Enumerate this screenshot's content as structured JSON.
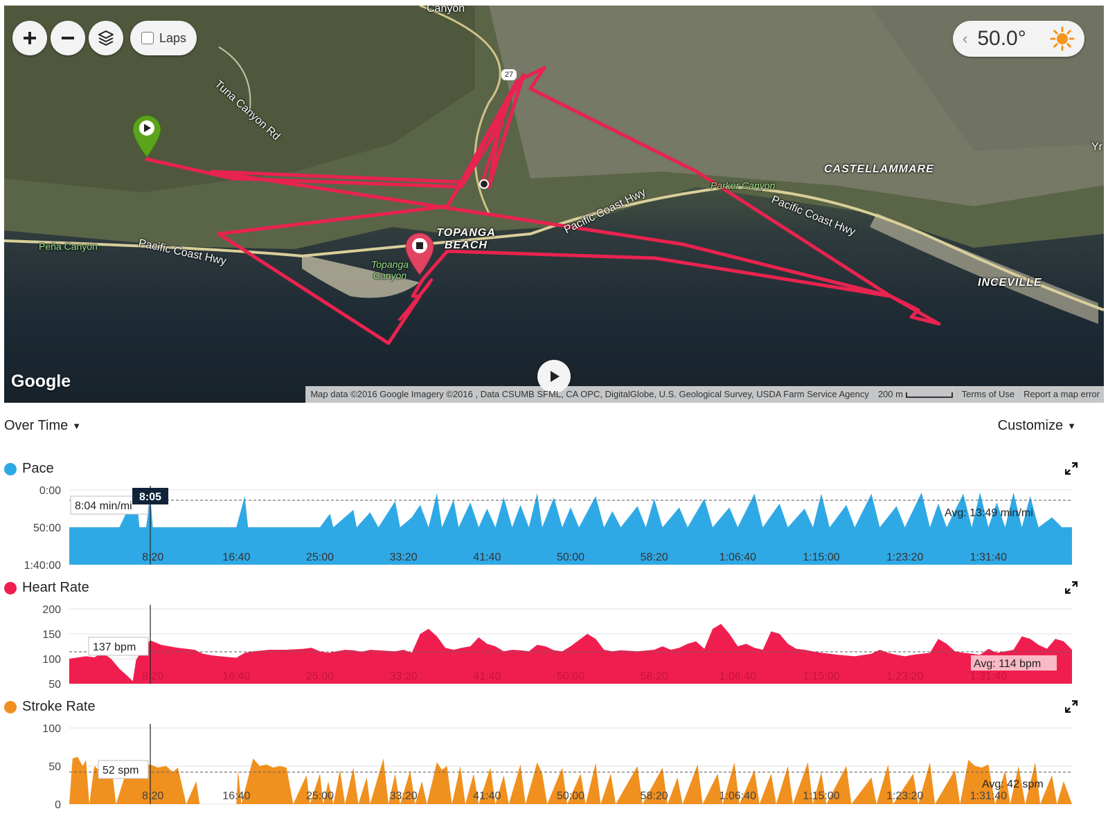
{
  "map": {
    "controls": {
      "zoom_in": "+",
      "zoom_out": "−",
      "laps_label": "Laps"
    },
    "weather": {
      "temperature": "50.0°",
      "icon": "sun-icon"
    },
    "logo": "Google",
    "play_icon": "play-icon",
    "attribution": {
      "data": "Map data ©2016 Google Imagery ©2016 , Data CSUMB SFML, CA OPC, DigitalGlobe, U.S. Geological Survey, USDA Farm Service Agency",
      "scale": "200 m",
      "terms": "Terms of Use",
      "report": "Report a map error"
    },
    "labels": {
      "canyon_top": "Canyon",
      "tuna_canyon_rd": "Tuna Canyon Rd",
      "route_27": "27",
      "pena_canyon": "Peña Canyon",
      "pch_left": "Pacific Coast Hwy",
      "topanga_beach": "TOPANGA BEACH",
      "topanga_canyon": "Topanga Canyon",
      "pch_mid": "Pacific Coast Hwy",
      "parker_canyon": "Parker Canyon",
      "castellammare": "CASTELLAMMARE",
      "pch_right": "Pacific Coast Hwy",
      "inceville": "INCEVILLE",
      "edge_right": "Yr"
    },
    "colors": {
      "track": "#e8234f",
      "start_pin": "#5ba31b",
      "end_pin": "#e04461"
    }
  },
  "controls_bar": {
    "view_mode": "Over Time",
    "customize": "Customize"
  },
  "x_ticks": [
    "8:20",
    "16:40",
    "25:00",
    "33:20",
    "41:40",
    "50:00",
    "58:20",
    "1:06:40",
    "1:15:00",
    "1:23:20",
    "1:31:40"
  ],
  "cursor": {
    "time": "8:05"
  },
  "charts": [
    {
      "key": "pace",
      "title": "Pace",
      "color": "#2fa9e6",
      "y_ticks": [
        "0:00",
        "50:00",
        "1:40:00"
      ],
      "tooltip": "8:04 min/mi",
      "avg_label": "Avg: 13:49 min/mi"
    },
    {
      "key": "heart_rate",
      "title": "Heart Rate",
      "color": "#f01e4f",
      "y_ticks": [
        "200",
        "150",
        "100",
        "50"
      ],
      "tooltip": "137 bpm",
      "avg_label": "Avg: 114 bpm"
    },
    {
      "key": "stroke_rate",
      "title": "Stroke Rate",
      "color": "#f0901e",
      "y_ticks": [
        "100",
        "50",
        "0"
      ],
      "tooltip": "52 spm",
      "avg_label": "Avg: 42 spm"
    }
  ],
  "chart_data": [
    {
      "type": "area",
      "title": "Pace",
      "ylabel": "min/mi",
      "ylim_seconds_per_mile": [
        0,
        6000
      ],
      "y_inverted": true,
      "avg_seconds_per_mile": 829,
      "points": [
        [
          0,
          3000
        ],
        [
          100,
          3000
        ],
        [
          200,
          3000
        ],
        [
          300,
          3000
        ],
        [
          400,
          200
        ],
        [
          420,
          3000
        ],
        [
          460,
          3000
        ],
        [
          485,
          484
        ],
        [
          500,
          3000
        ],
        [
          620,
          3000
        ],
        [
          700,
          3000
        ],
        [
          800,
          3000
        ],
        [
          1000,
          3000
        ],
        [
          1050,
          500
        ],
        [
          1070,
          3000
        ],
        [
          1300,
          3000
        ],
        [
          1500,
          3000
        ],
        [
          1560,
          1900
        ],
        [
          1580,
          3000
        ],
        [
          1700,
          1600
        ],
        [
          1720,
          3000
        ],
        [
          1800,
          1800
        ],
        [
          1850,
          3000
        ],
        [
          1950,
          900
        ],
        [
          1980,
          3000
        ],
        [
          2050,
          2200
        ],
        [
          2100,
          1200
        ],
        [
          2150,
          3000
        ],
        [
          2200,
          250
        ],
        [
          2230,
          3000
        ],
        [
          2300,
          800
        ],
        [
          2330,
          3000
        ],
        [
          2400,
          1000
        ],
        [
          2450,
          3000
        ],
        [
          2500,
          1500
        ],
        [
          2550,
          3000
        ],
        [
          2600,
          600
        ],
        [
          2650,
          3000
        ],
        [
          2700,
          1200
        ],
        [
          2750,
          3000
        ],
        [
          2800,
          250
        ],
        [
          2830,
          3000
        ],
        [
          2900,
          600
        ],
        [
          2950,
          3000
        ],
        [
          3000,
          1400
        ],
        [
          3050,
          3000
        ],
        [
          3150,
          500
        ],
        [
          3200,
          3000
        ],
        [
          3250,
          1700
        ],
        [
          3300,
          3000
        ],
        [
          3400,
          1300
        ],
        [
          3450,
          3000
        ],
        [
          3500,
          700
        ],
        [
          3550,
          3000
        ],
        [
          3650,
          1400
        ],
        [
          3700,
          3000
        ],
        [
          3800,
          700
        ],
        [
          3850,
          3000
        ],
        [
          3950,
          1400
        ],
        [
          4000,
          3000
        ],
        [
          4100,
          300
        ],
        [
          4150,
          3000
        ],
        [
          4250,
          1100
        ],
        [
          4300,
          3000
        ],
        [
          4400,
          1500
        ],
        [
          4450,
          3000
        ],
        [
          4500,
          300
        ],
        [
          4550,
          3000
        ],
        [
          4650,
          1200
        ],
        [
          4700,
          3000
        ],
        [
          4800,
          300
        ],
        [
          4850,
          3000
        ],
        [
          4950,
          1300
        ],
        [
          5000,
          3000
        ],
        [
          5100,
          200
        ],
        [
          5150,
          3000
        ],
        [
          5200,
          1100
        ],
        [
          5250,
          3000
        ],
        [
          5350,
          300
        ],
        [
          5400,
          3000
        ],
        [
          5450,
          200
        ],
        [
          5500,
          3000
        ],
        [
          5550,
          1000
        ],
        [
          5600,
          3000
        ],
        [
          5650,
          200
        ],
        [
          5700,
          3000
        ],
        [
          5750,
          500
        ],
        [
          5800,
          3000
        ],
        [
          5880,
          2200
        ],
        [
          5940,
          3000
        ],
        [
          6000,
          3000
        ]
      ]
    },
    {
      "type": "area",
      "title": "Heart Rate",
      "ylabel": "bpm",
      "ylim": [
        50,
        200
      ],
      "avg": 114,
      "points": [
        [
          0,
          100
        ],
        [
          100,
          105
        ],
        [
          150,
          103
        ],
        [
          200,
          112
        ],
        [
          250,
          100
        ],
        [
          300,
          80
        ],
        [
          350,
          65
        ],
        [
          380,
          55
        ],
        [
          400,
          98
        ],
        [
          440,
          120
        ],
        [
          485,
          137
        ],
        [
          550,
          128
        ],
        [
          650,
          122
        ],
        [
          750,
          118
        ],
        [
          800,
          110
        ],
        [
          850,
          107
        ],
        [
          900,
          105
        ],
        [
          1000,
          102
        ],
        [
          1050,
          112
        ],
        [
          1100,
          115
        ],
        [
          1200,
          118
        ],
        [
          1300,
          118
        ],
        [
          1400,
          120
        ],
        [
          1450,
          122
        ],
        [
          1500,
          115
        ],
        [
          1550,
          112
        ],
        [
          1600,
          115
        ],
        [
          1650,
          118
        ],
        [
          1700,
          117
        ],
        [
          1750,
          114
        ],
        [
          1800,
          118
        ],
        [
          1850,
          117
        ],
        [
          1900,
          116
        ],
        [
          1950,
          115
        ],
        [
          2000,
          118
        ],
        [
          2050,
          112
        ],
        [
          2100,
          150
        ],
        [
          2150,
          160
        ],
        [
          2200,
          145
        ],
        [
          2250,
          122
        ],
        [
          2300,
          118
        ],
        [
          2350,
          122
        ],
        [
          2400,
          125
        ],
        [
          2450,
          143
        ],
        [
          2500,
          130
        ],
        [
          2550,
          125
        ],
        [
          2600,
          115
        ],
        [
          2650,
          118
        ],
        [
          2700,
          117
        ],
        [
          2750,
          115
        ],
        [
          2800,
          128
        ],
        [
          2850,
          125
        ],
        [
          2900,
          117
        ],
        [
          2950,
          115
        ],
        [
          3000,
          125
        ],
        [
          3100,
          150
        ],
        [
          3150,
          140
        ],
        [
          3200,
          118
        ],
        [
          3250,
          115
        ],
        [
          3300,
          117
        ],
        [
          3400,
          115
        ],
        [
          3500,
          118
        ],
        [
          3550,
          125
        ],
        [
          3600,
          118
        ],
        [
          3650,
          122
        ],
        [
          3700,
          130
        ],
        [
          3750,
          135
        ],
        [
          3800,
          120
        ],
        [
          3850,
          160
        ],
        [
          3900,
          170
        ],
        [
          3950,
          150
        ],
        [
          4000,
          125
        ],
        [
          4050,
          130
        ],
        [
          4100,
          122
        ],
        [
          4150,
          118
        ],
        [
          4200,
          155
        ],
        [
          4250,
          150
        ],
        [
          4300,
          130
        ],
        [
          4350,
          120
        ],
        [
          4400,
          118
        ],
        [
          4450,
          115
        ],
        [
          4500,
          112
        ],
        [
          4550,
          110
        ],
        [
          4600,
          108
        ],
        [
          4700,
          105
        ],
        [
          4800,
          110
        ],
        [
          4850,
          118
        ],
        [
          4900,
          112
        ],
        [
          4950,
          108
        ],
        [
          5000,
          105
        ],
        [
          5050,
          108
        ],
        [
          5100,
          110
        ],
        [
          5150,
          112
        ],
        [
          5200,
          140
        ],
        [
          5250,
          130
        ],
        [
          5300,
          115
        ],
        [
          5350,
          112
        ],
        [
          5400,
          110
        ],
        [
          5450,
          108
        ],
        [
          5500,
          120
        ],
        [
          5550,
          112
        ],
        [
          5600,
          115
        ],
        [
          5650,
          118
        ],
        [
          5700,
          145
        ],
        [
          5750,
          140
        ],
        [
          5800,
          128
        ],
        [
          5850,
          120
        ],
        [
          5900,
          140
        ],
        [
          5950,
          135
        ],
        [
          6000,
          118
        ]
      ]
    },
    {
      "type": "area",
      "title": "Stroke Rate",
      "ylabel": "spm",
      "ylim": [
        0,
        100
      ],
      "avg": 42,
      "points": [
        [
          0,
          0
        ],
        [
          20,
          60
        ],
        [
          50,
          62
        ],
        [
          80,
          50
        ],
        [
          100,
          58
        ],
        [
          120,
          0
        ],
        [
          150,
          50
        ],
        [
          200,
          40
        ],
        [
          250,
          55
        ],
        [
          280,
          0
        ],
        [
          330,
          35
        ],
        [
          400,
          48
        ],
        [
          485,
          52
        ],
        [
          530,
          48
        ],
        [
          580,
          50
        ],
        [
          620,
          42
        ],
        [
          650,
          48
        ],
        [
          700,
          0
        ],
        [
          760,
          30
        ],
        [
          780,
          0
        ],
        [
          1000,
          0
        ],
        [
          1010,
          45
        ],
        [
          1030,
          0
        ],
        [
          1100,
          60
        ],
        [
          1140,
          50
        ],
        [
          1180,
          52
        ],
        [
          1220,
          48
        ],
        [
          1260,
          50
        ],
        [
          1300,
          48
        ],
        [
          1340,
          0
        ],
        [
          1420,
          38
        ],
        [
          1440,
          0
        ],
        [
          1500,
          40
        ],
        [
          1520,
          0
        ],
        [
          1550,
          30
        ],
        [
          1580,
          0
        ],
        [
          1620,
          45
        ],
        [
          1650,
          0
        ],
        [
          1700,
          48
        ],
        [
          1730,
          0
        ],
        [
          1780,
          35
        ],
        [
          1800,
          0
        ],
        [
          1880,
          60
        ],
        [
          1910,
          0
        ],
        [
          1950,
          40
        ],
        [
          1980,
          0
        ],
        [
          2040,
          44
        ],
        [
          2070,
          0
        ],
        [
          2110,
          30
        ],
        [
          2140,
          0
        ],
        [
          2200,
          55
        ],
        [
          2230,
          45
        ],
        [
          2260,
          50
        ],
        [
          2290,
          0
        ],
        [
          2340,
          50
        ],
        [
          2370,
          0
        ],
        [
          2420,
          40
        ],
        [
          2450,
          0
        ],
        [
          2520,
          48
        ],
        [
          2550,
          0
        ],
        [
          2600,
          38
        ],
        [
          2630,
          0
        ],
        [
          2700,
          52
        ],
        [
          2730,
          0
        ],
        [
          2800,
          55
        ],
        [
          2830,
          40
        ],
        [
          2860,
          0
        ],
        [
          2950,
          48
        ],
        [
          2980,
          0
        ],
        [
          3060,
          40
        ],
        [
          3090,
          0
        ],
        [
          3150,
          54
        ],
        [
          3180,
          0
        ],
        [
          3240,
          40
        ],
        [
          3270,
          0
        ],
        [
          3400,
          50
        ],
        [
          3430,
          0
        ],
        [
          3550,
          48
        ],
        [
          3580,
          0
        ],
        [
          3640,
          35
        ],
        [
          3670,
          0
        ],
        [
          3760,
          52
        ],
        [
          3790,
          0
        ],
        [
          3880,
          40
        ],
        [
          3910,
          0
        ],
        [
          3980,
          55
        ],
        [
          4010,
          0
        ],
        [
          4100,
          45
        ],
        [
          4130,
          0
        ],
        [
          4200,
          40
        ],
        [
          4230,
          0
        ],
        [
          4300,
          50
        ],
        [
          4330,
          0
        ],
        [
          4420,
          55
        ],
        [
          4450,
          0
        ],
        [
          4500,
          42
        ],
        [
          4530,
          0
        ],
        [
          4650,
          50
        ],
        [
          4680,
          0
        ],
        [
          4800,
          35
        ],
        [
          4830,
          0
        ],
        [
          4900,
          52
        ],
        [
          4930,
          0
        ],
        [
          5050,
          40
        ],
        [
          5080,
          0
        ],
        [
          5150,
          55
        ],
        [
          5180,
          0
        ],
        [
          5300,
          45
        ],
        [
          5330,
          0
        ],
        [
          5380,
          58
        ],
        [
          5420,
          50
        ],
        [
          5460,
          48
        ],
        [
          5500,
          52
        ],
        [
          5540,
          0
        ],
        [
          5600,
          44
        ],
        [
          5630,
          0
        ],
        [
          5680,
          50
        ],
        [
          5720,
          0
        ],
        [
          5780,
          55
        ],
        [
          5810,
          0
        ],
        [
          5880,
          38
        ],
        [
          5910,
          0
        ],
        [
          5950,
          30
        ],
        [
          6000,
          0
        ]
      ]
    }
  ]
}
